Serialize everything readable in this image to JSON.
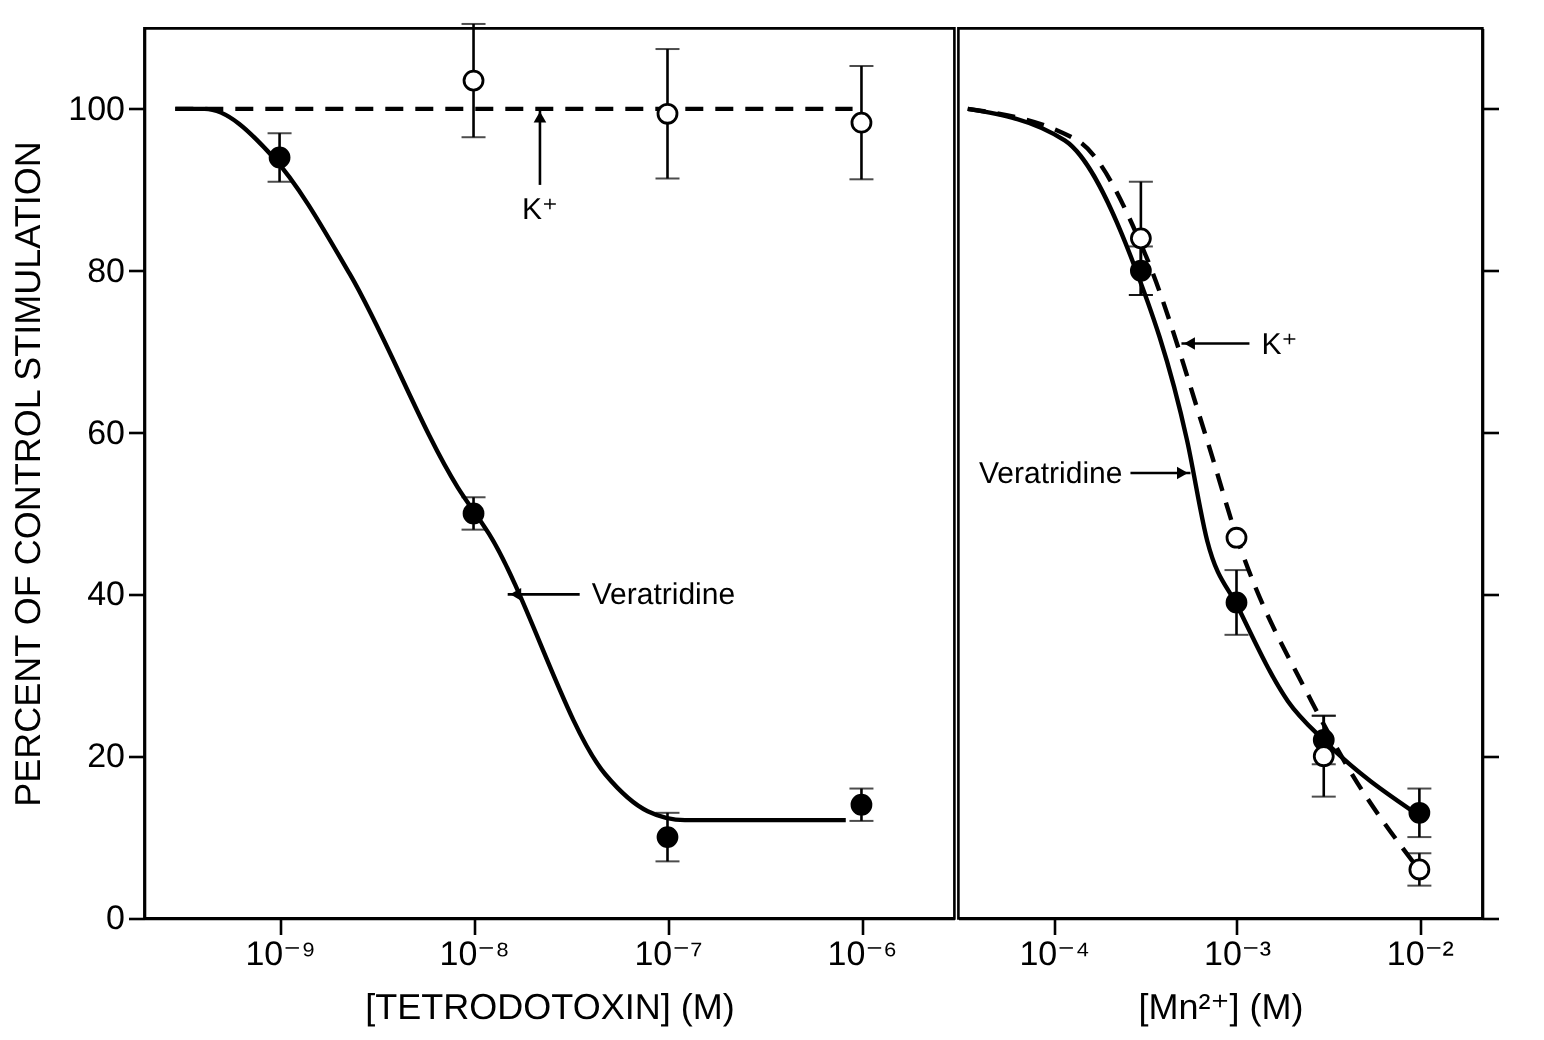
{
  "chart_data": [
    {
      "type": "scatter",
      "xlabel": "[TETRODOTOXIN] (M)",
      "ylabel": "PERCENT OF CONTROL STIMULATION",
      "log": "x",
      "xlim": [
        2e-10,
        3e-06
      ],
      "xticks": [
        {
          "value": 1e-09,
          "label": "10⁻⁹"
        },
        {
          "value": 1e-08,
          "label": "10⁻⁸"
        },
        {
          "value": 1e-07,
          "label": "10⁻⁷"
        },
        {
          "value": 1e-06,
          "label": "10⁻⁶"
        }
      ],
      "ylim": [
        0,
        110
      ],
      "yticks": [
        0,
        20,
        40,
        60,
        80,
        100
      ],
      "series": [
        {
          "type": "line",
          "color": "#000000",
          "line_style": "solid",
          "x": [
            2.9e-10,
            4.1e-10,
            9.3e-10,
            2.3e-09,
            8.3e-09,
            1.2e-08,
            4.8e-08,
            7.9e-08,
            1.23e-07,
            8.3e-07
          ],
          "values": [
            100,
            100,
            94,
            79.6,
            53.2,
            47.5,
            17.7,
            13.2,
            12.1,
            12.1
          ]
        },
        {
          "type": "line",
          "color": "#000000",
          "line_style": "dashed",
          "x": [
            2.9e-10,
            9e-07
          ],
          "values": [
            100,
            100
          ]
        },
        {
          "type": "scatter",
          "marker": "circle",
          "color": "#000000",
          "x": [
            1e-09,
            1e-08,
            1e-07,
            1e-06
          ],
          "values": [
            94,
            50,
            10,
            14
          ],
          "errors": [
            3,
            2,
            3,
            2
          ]
        },
        {
          "type": "scatter",
          "marker": "circle",
          "color": "#ffffff",
          "x": [
            1e-08,
            1e-07,
            1e-06
          ],
          "values": [
            103.5,
            99.4,
            98.3
          ],
          "errors": [
            7,
            8,
            7
          ]
        }
      ],
      "annotations": [
        {
          "text": "K⁺",
          "x": 2.2e-08,
          "y": 100
        },
        {
          "text": "Veratridine",
          "x": 1.5e-08,
          "y": 40
        }
      ]
    },
    {
      "type": "scatter",
      "xlabel": "[Mn²⁺] (M)",
      "log": "x",
      "tick_labels": "x",
      "xlim": [
        3e-05,
        0.022
      ],
      "xticks": [
        {
          "value": 0.0001,
          "label": "10⁻⁴"
        },
        {
          "value": 0.001,
          "label": "10⁻³"
        },
        {
          "value": 0.01,
          "label": "10⁻²"
        }
      ],
      "ylim": [
        0,
        110
      ],
      "yticks": [
        0,
        20,
        40,
        60,
        80,
        100
      ],
      "series": [
        {
          "type": "line",
          "color": "#000000",
          "line_style": "solid",
          "x": [
            3.39e-05,
            0.000115,
            0.000269,
            0.000537,
            0.000692,
            0.00102,
            0.00191,
            0.00302,
            0.00977
          ],
          "values": [
            100,
            96.1,
            81.3,
            59,
            46.6,
            38.4,
            26.8,
            21.9,
            12.8
          ]
        },
        {
          "type": "line",
          "color": "#000000",
          "line_style": "dashed",
          "x": [
            3.39e-05,
            0.000135,
            0.000316,
            0.000692,
            0.00102,
            0.00257,
            0.00407,
            0.00977
          ],
          "values": [
            100,
            96.1,
            82.1,
            59,
            46.6,
            26.8,
            18.6,
            6.2
          ]
        },
        {
          "type": "scatter",
          "marker": "circle",
          "color": "#000000",
          "x": [
            0.0003,
            0.001,
            0.003,
            0.01
          ],
          "values": [
            80,
            39,
            22,
            13
          ],
          "errors": [
            3,
            4,
            3,
            3
          ]
        },
        {
          "type": "scatter",
          "marker": "circle",
          "color": "#ffffff",
          "x": [
            0.0003,
            0.001,
            0.003,
            0.01
          ],
          "values": [
            84,
            47,
            20,
            6
          ],
          "errors": [
            7,
            null,
            5,
            2
          ]
        }
      ],
      "annotations": [
        {
          "text": "K⁺",
          "x": 0.0005,
          "y": 71
        },
        {
          "text": "Veratridine",
          "x": 0.00056,
          "y": 55
        }
      ]
    }
  ]
}
